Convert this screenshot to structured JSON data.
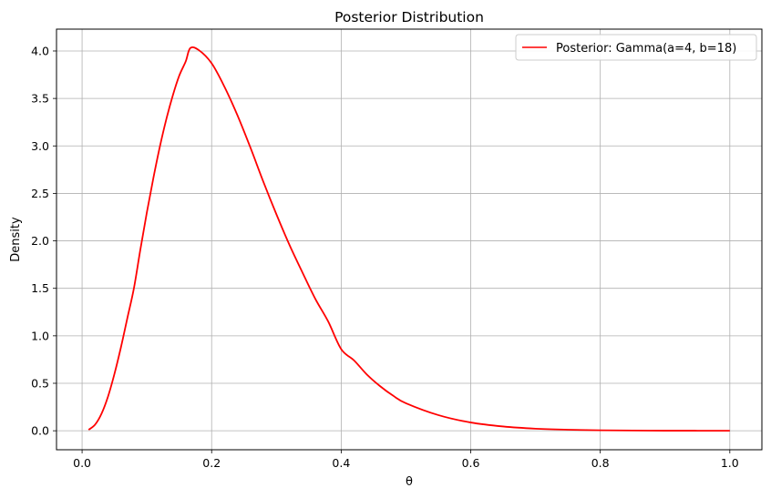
{
  "chart_data": {
    "type": "line",
    "title": "Posterior Distribution",
    "xlabel": "θ",
    "ylabel": "Density",
    "xlim": [
      -0.0395,
      1.0495
    ],
    "ylim": [
      -0.2,
      4.23
    ],
    "x_ticks": [
      0.0,
      0.2,
      0.4,
      0.6,
      0.8,
      1.0
    ],
    "x_tick_labels": [
      "0.0",
      "0.2",
      "0.4",
      "0.6",
      "0.8",
      "1.0"
    ],
    "y_ticks": [
      0.0,
      0.5,
      1.0,
      1.5,
      2.0,
      2.5,
      3.0,
      3.5,
      4.0
    ],
    "y_tick_labels": [
      "0.0",
      "0.5",
      "1.0",
      "1.5",
      "2.0",
      "2.5",
      "3.0",
      "3.5",
      "4.0"
    ],
    "grid": true,
    "legend_position": "top-right",
    "series": [
      {
        "name": "Posterior: Gamma(a=4, b=18)",
        "color": "#ff0000",
        "x": [
          0.01,
          0.02,
          0.03,
          0.04,
          0.05,
          0.06,
          0.07,
          0.08,
          0.09,
          0.1,
          0.11,
          0.12,
          0.13,
          0.14,
          0.15,
          0.16,
          0.167,
          0.18,
          0.2,
          0.22,
          0.24,
          0.26,
          0.28,
          0.3,
          0.32,
          0.34,
          0.36,
          0.38,
          0.4,
          0.42,
          0.44,
          0.46,
          0.48,
          0.5,
          0.55,
          0.6,
          0.65,
          0.7,
          0.75,
          0.8,
          0.85,
          0.9,
          0.95,
          1.0
        ],
        "y": [
          0.01,
          0.064,
          0.18,
          0.36,
          0.6,
          0.88,
          1.19,
          1.5,
          1.91,
          2.3,
          2.66,
          2.99,
          3.28,
          3.53,
          3.74,
          3.89,
          4.03,
          4.01,
          3.87,
          3.62,
          3.32,
          2.98,
          2.62,
          2.28,
          1.96,
          1.67,
          1.39,
          1.15,
          0.86,
          0.74,
          0.59,
          0.47,
          0.37,
          0.29,
          0.165,
          0.087,
          0.045,
          0.022,
          0.011,
          0.005,
          0.0025,
          0.001,
          0.0005,
          0.0002
        ]
      }
    ]
  }
}
